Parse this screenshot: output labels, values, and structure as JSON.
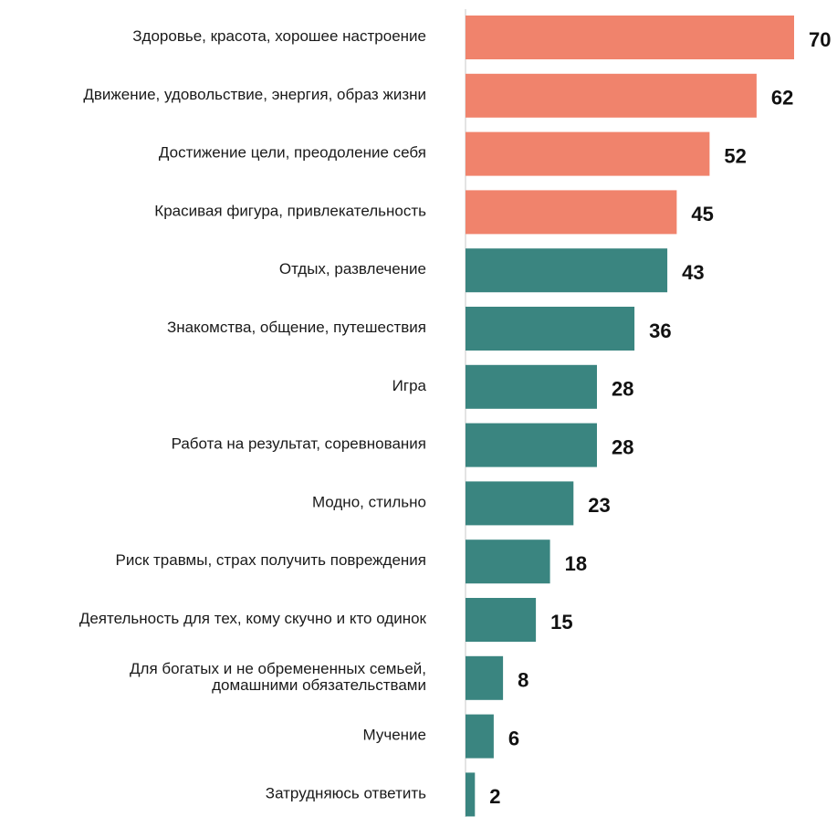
{
  "chart_data": {
    "type": "bar",
    "orientation": "horizontal",
    "categories": [
      "Здоровье, красота, хорошее настроение",
      "Движение, удовольствие, энергия, образ жизни",
      "Достижение цели, преодоление себя",
      "Красивая фигура, привлекательность",
      "Отдых, развлечение",
      "Знакомства, общение, путешествия",
      "Игра",
      "Работа на результат, соревнования",
      "Модно, стильно",
      "Риск травмы, страх получить повреждения",
      "Деятельность для тех, кому скучно и кто одинок",
      "Для богатых и не обремененных семьей,\nдомашними обязательствами",
      "Мучение",
      "Затрудняюсь ответить"
    ],
    "values": [
      70,
      62,
      52,
      45,
      43,
      36,
      28,
      28,
      23,
      18,
      15,
      8,
      6,
      2
    ],
    "value_labels": [
      "70",
      "62",
      "52",
      "45",
      "43",
      "36",
      "28",
      "28",
      "23",
      "18",
      "15",
      "8",
      "6",
      "2"
    ],
    "bar_colors": [
      "#f0836c",
      "#f0836c",
      "#f0836c",
      "#f0836c",
      "#3a8580",
      "#3a8580",
      "#3a8580",
      "#3a8580",
      "#3a8580",
      "#3a8580",
      "#3a8580",
      "#3a8580",
      "#3a8580",
      "#3a8580"
    ],
    "xlim": [
      0,
      70
    ],
    "grid": false,
    "legend": "none",
    "axis_color": "#c8c8c8"
  }
}
